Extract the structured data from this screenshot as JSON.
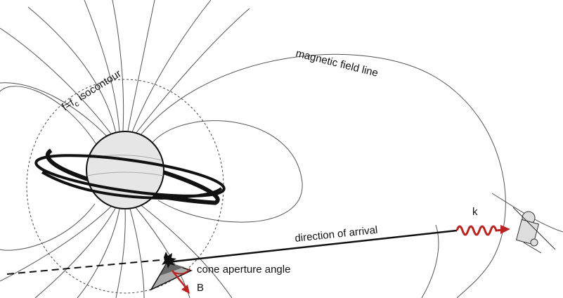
{
  "labels": {
    "field_line": "magnetic field line",
    "isocontour": {
      "main": "f=f",
      "sub": "c",
      "rest": " isocontour"
    },
    "arrival": "direction of arrival",
    "wave": "k",
    "cone": "cone aperture angle",
    "field": "B"
  }
}
